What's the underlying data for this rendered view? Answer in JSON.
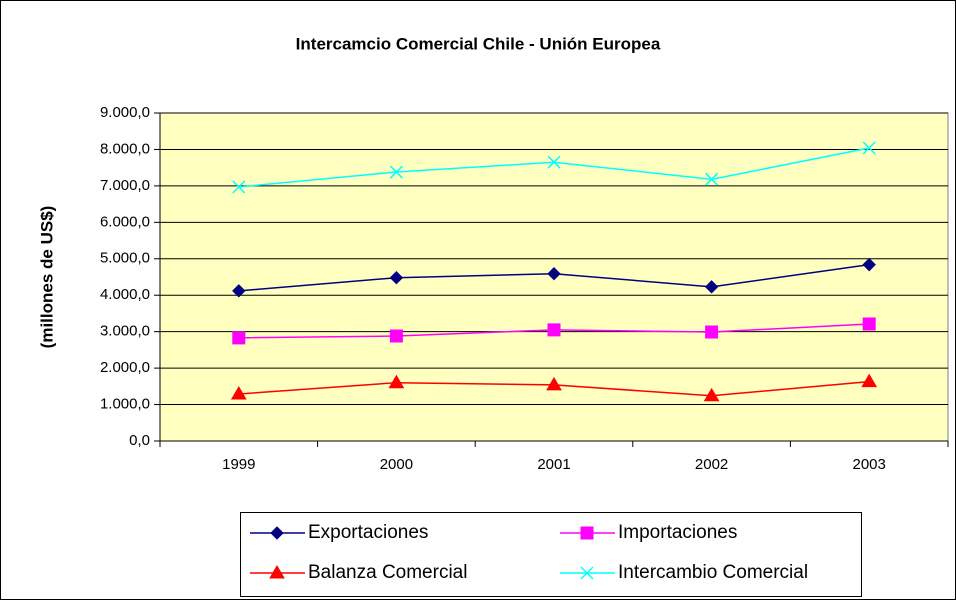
{
  "chart_data": {
    "type": "line",
    "title": "Intercamcio Comercial Chile - Unión Europea",
    "y_label": "(millones de US$)",
    "categories": [
      "1999",
      "2000",
      "2001",
      "2002",
      "2003"
    ],
    "series": [
      {
        "name": "Exportaciones",
        "color": "#000080",
        "marker": "diamond",
        "values": [
          4120,
          4480,
          4590,
          4230,
          4840
        ]
      },
      {
        "name": "Importaciones",
        "color": "#FF00FF",
        "marker": "square",
        "values": [
          2830,
          2880,
          3050,
          2990,
          3210
        ]
      },
      {
        "name": "Balanza Comercial",
        "color": "#FF0000",
        "marker": "triangle",
        "values": [
          1290,
          1600,
          1540,
          1240,
          1630
        ]
      },
      {
        "name": "Intercambio Comercial",
        "color": "#00FFFF",
        "marker": "x",
        "values": [
          6970,
          7380,
          7650,
          7180,
          8040
        ]
      }
    ],
    "ylim": [
      0,
      9000
    ],
    "yticks": [
      {
        "value": 0,
        "label": "0,0"
      },
      {
        "value": 1000,
        "label": "1.000,0"
      },
      {
        "value": 2000,
        "label": "2.000,0"
      },
      {
        "value": 3000,
        "label": "3.000,0"
      },
      {
        "value": 4000,
        "label": "4.000,0"
      },
      {
        "value": 5000,
        "label": "5.000,0"
      },
      {
        "value": 6000,
        "label": "6.000,0"
      },
      {
        "value": 7000,
        "label": "7.000,0"
      },
      {
        "value": 8000,
        "label": "8.000,0"
      },
      {
        "value": 9000,
        "label": "9.000,0"
      }
    ],
    "grid": true,
    "legend": "bottom"
  }
}
